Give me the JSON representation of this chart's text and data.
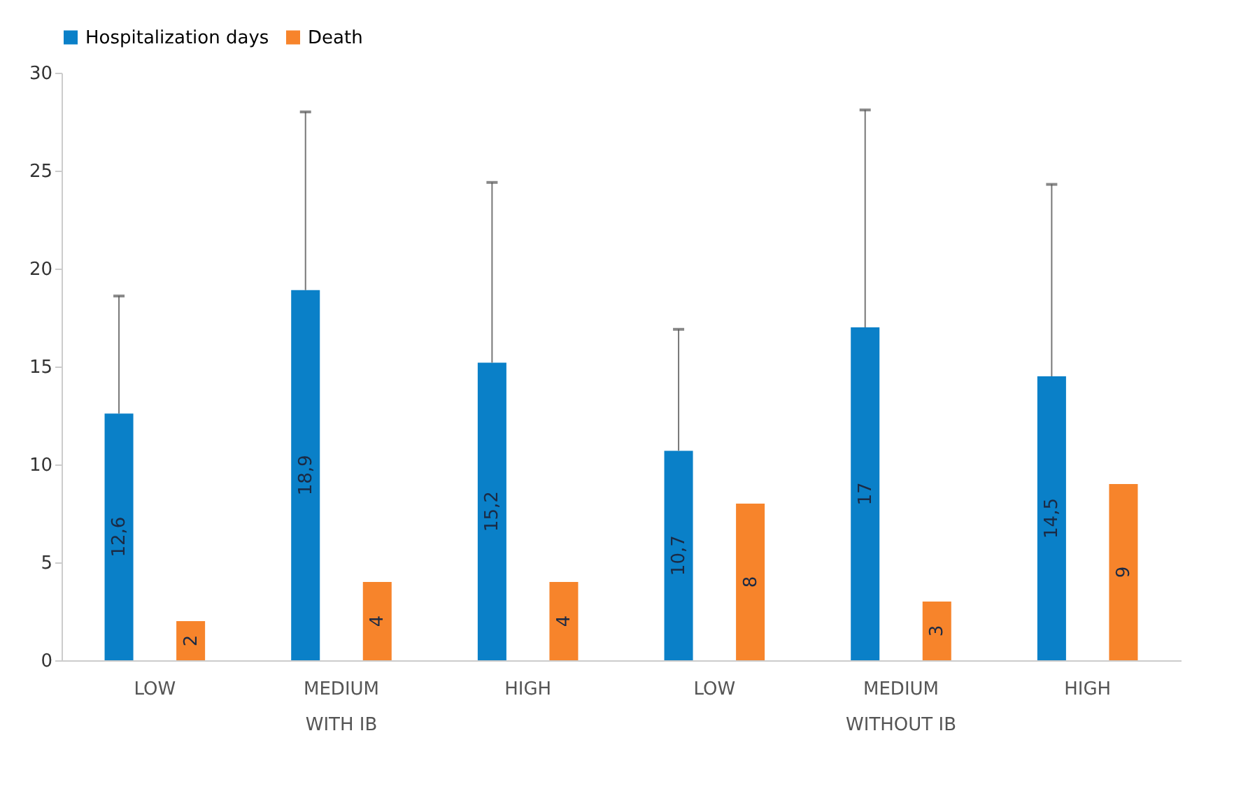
{
  "chart_data": {
    "type": "bar",
    "categories": [
      "LOW",
      "MEDIUM",
      "HIGH",
      "LOW",
      "MEDIUM",
      "HIGH"
    ],
    "series": [
      {
        "name": "Hospitalization days",
        "color": "#0a80c8",
        "values": [
          12.6,
          18.9,
          15.2,
          10.7,
          17,
          14.5
        ],
        "value_labels": [
          "12,6",
          "18,9",
          "15,2",
          "10,7",
          "17",
          "14,5"
        ],
        "errors": [
          [
            12.6,
            18.6
          ],
          [
            18.9,
            28
          ],
          [
            15.2,
            24.4
          ],
          [
            10.7,
            16.9
          ],
          [
            17,
            28.1
          ],
          [
            14.5,
            24.3
          ]
        ]
      },
      {
        "name": "Death",
        "color": "#f7842b",
        "values": [
          2,
          4,
          4,
          8,
          3,
          9
        ],
        "value_labels": [
          "2",
          "4",
          "4",
          "8",
          "3",
          "9"
        ]
      }
    ],
    "ylim": [
      0,
      30
    ],
    "yticks": [
      0,
      5,
      10,
      15,
      20,
      25,
      30
    ],
    "grid": false,
    "legend": "top",
    "annotations": [
      "WITH IB",
      "WITHOUT IB"
    ]
  }
}
